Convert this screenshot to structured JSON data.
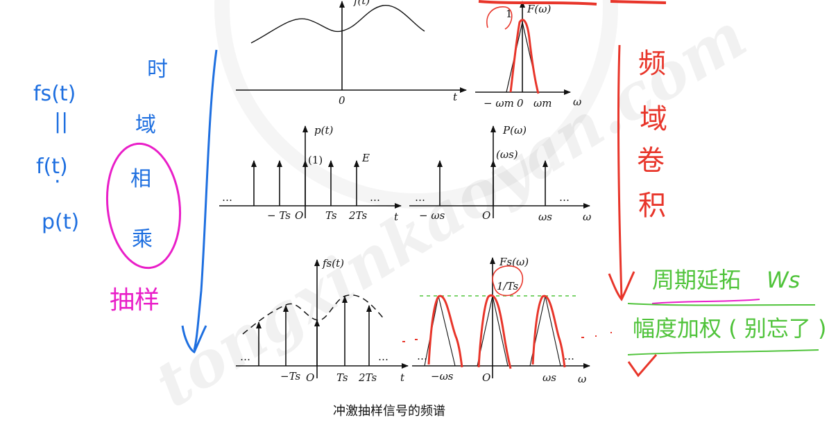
{
  "watermark": "tongxinkaoyan.com",
  "caption": "冲激抽样信号的频谱",
  "panels": {
    "time_top": {
      "func": "f(t)",
      "origin": "0",
      "axis": "t"
    },
    "freq_top": {
      "func": "F(ω)",
      "peak": "1",
      "axis": "ω",
      "neg": "− ωm",
      "origin": "0",
      "pos": "ωm"
    },
    "time_mid": {
      "func": "p(t)",
      "impulse": "(1)",
      "amp": "E",
      "dots": "…",
      "ticks": [
        "− Ts",
        "O",
        "Ts",
        "2Ts"
      ],
      "axis": "t"
    },
    "freq_mid": {
      "func": "P(ω)",
      "impulse": "(ωs)",
      "dots": "…",
      "ticks": [
        "− ωs",
        "O",
        "ωs"
      ],
      "axis": "ω"
    },
    "time_bot": {
      "func": "fs(t)",
      "dots": "…",
      "ticks": [
        "−Ts",
        "O",
        "Ts",
        "2Ts"
      ],
      "axis": "t"
    },
    "freq_bot": {
      "func": "Fs(ω)",
      "peak": "1/Ts",
      "dots": "…",
      "ticks": [
        "−ωs",
        "O",
        "ωs"
      ],
      "axis": "ω"
    }
  },
  "notes": {
    "blue_left": [
      "fs(t)",
      "||",
      "f(t)",
      "·",
      "p(t)"
    ],
    "blue_vertical": [
      "时",
      "域",
      "相",
      "乘"
    ],
    "magenta": "抽样",
    "red_vertical": [
      "频",
      "域",
      "卷",
      "积"
    ],
    "green_line1": "周期延拓",
    "green_ws": "Ws",
    "green_line2": "幅度加权 ( 别忘了 )"
  },
  "colors": {
    "blue": "#1e6fe0",
    "red": "#e8352a",
    "magenta": "#e91ec8",
    "green": "#4fc33a"
  }
}
